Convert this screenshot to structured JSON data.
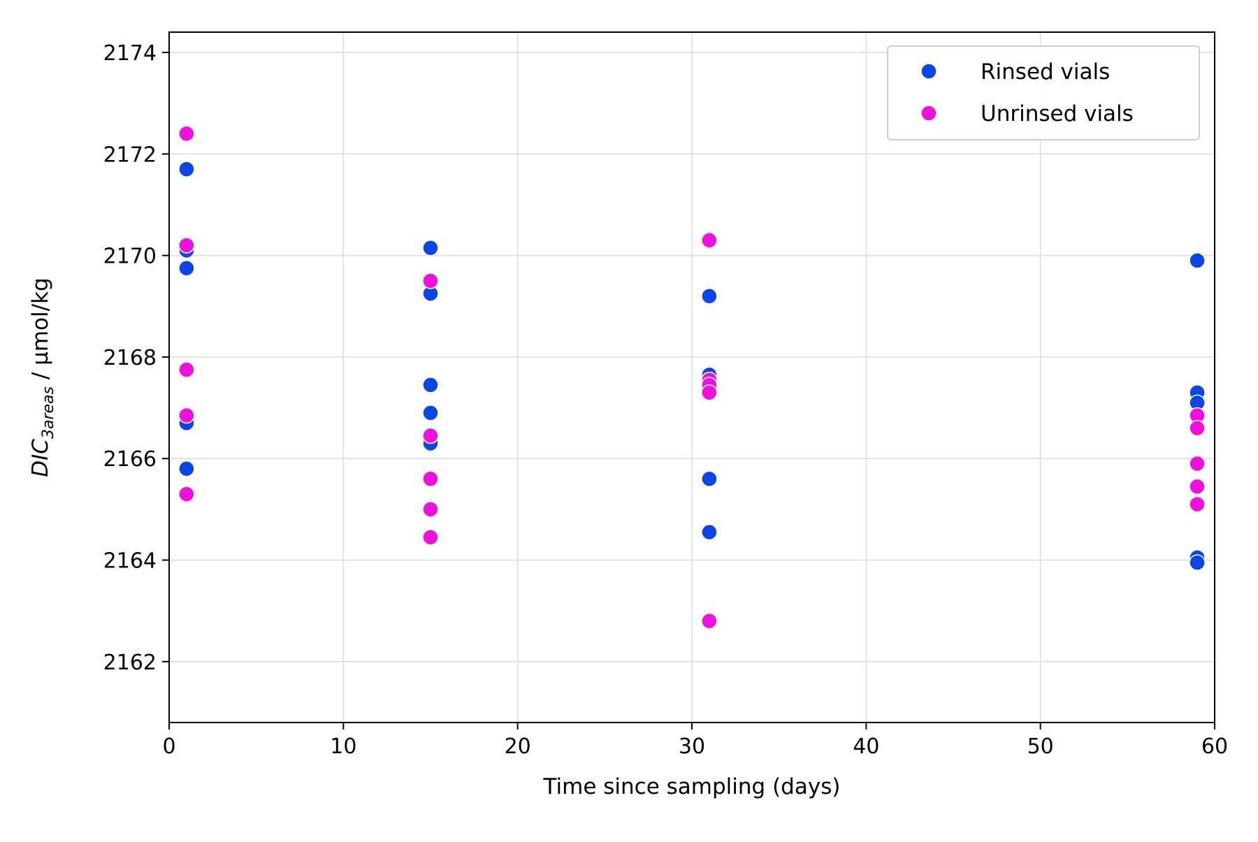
{
  "chart_data": {
    "type": "scatter",
    "xlabel": "Time since sampling (days)",
    "ylabel": {
      "main": "DIC",
      "subscript": "3areas",
      "unit": " / µmol/kg"
    },
    "xlim": [
      0,
      60
    ],
    "ylim": [
      2160.8,
      2174.4
    ],
    "xticks": [
      0,
      10,
      20,
      30,
      40,
      50,
      60
    ],
    "yticks": [
      2162,
      2164,
      2166,
      2168,
      2170,
      2172,
      2174
    ],
    "grid": true,
    "legend_position": "top-right",
    "series": [
      {
        "name": "Rinsed vials",
        "color": "#0b45e6",
        "points": [
          [
            1,
            2171.7
          ],
          [
            1,
            2170.1
          ],
          [
            1,
            2169.75
          ],
          [
            1,
            2166.7
          ],
          [
            1,
            2165.8
          ],
          [
            15,
            2170.15
          ],
          [
            15,
            2169.25
          ],
          [
            15,
            2167.45
          ],
          [
            15,
            2166.9
          ],
          [
            15,
            2166.3
          ],
          [
            31,
            2169.2
          ],
          [
            31,
            2167.65
          ],
          [
            31,
            2167.55
          ],
          [
            31,
            2165.6
          ],
          [
            31,
            2164.55
          ],
          [
            59,
            2169.9
          ],
          [
            59,
            2167.3
          ],
          [
            59,
            2167.1
          ],
          [
            59,
            2164.05
          ],
          [
            59,
            2163.95
          ]
        ]
      },
      {
        "name": "Unrinsed vials",
        "color": "#ee11dd",
        "points": [
          [
            1,
            2172.4
          ],
          [
            1,
            2170.2
          ],
          [
            1,
            2167.75
          ],
          [
            1,
            2166.85
          ],
          [
            1,
            2165.3
          ],
          [
            15,
            2169.5
          ],
          [
            15,
            2166.45
          ],
          [
            15,
            2165.6
          ],
          [
            15,
            2165.0
          ],
          [
            15,
            2164.45
          ],
          [
            31,
            2170.3
          ],
          [
            31,
            2167.55
          ],
          [
            31,
            2167.45
          ],
          [
            31,
            2167.3
          ],
          [
            31,
            2162.8
          ],
          [
            59,
            2166.85
          ],
          [
            59,
            2166.6
          ],
          [
            59,
            2165.9
          ],
          [
            59,
            2165.45
          ],
          [
            59,
            2165.1
          ]
        ]
      }
    ]
  }
}
